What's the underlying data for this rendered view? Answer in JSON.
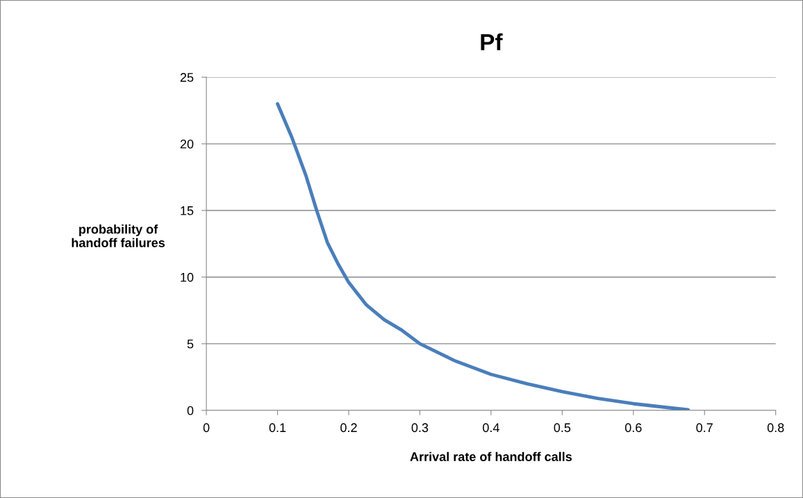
{
  "chart_data": {
    "type": "line",
    "title": "Pf",
    "xlabel": "Arrival rate of handoff calls",
    "ylabel": "probability of\nhandoff failures",
    "x": [
      0.1,
      0.12,
      0.14,
      0.155,
      0.17,
      0.185,
      0.2,
      0.225,
      0.25,
      0.275,
      0.3,
      0.35,
      0.4,
      0.45,
      0.5,
      0.55,
      0.6,
      0.65,
      0.677
    ],
    "series": [
      {
        "color": "#4a7ebb",
        "values": [
          23,
          20.5,
          17.6,
          15,
          12.6,
          11,
          9.6,
          7.9,
          6.8,
          6,
          5,
          3.7,
          2.7,
          2,
          1.4,
          0.9,
          0.5,
          0.2,
          0.05
        ]
      }
    ],
    "xlim": [
      0,
      0.8
    ],
    "xticks": [
      0,
      0.1,
      0.2,
      0.3,
      0.4,
      0.5,
      0.6,
      0.7,
      0.8
    ],
    "ylim": [
      0,
      25
    ],
    "yticks": [
      0,
      5,
      10,
      15,
      20,
      25
    ],
    "grid": "y",
    "legend": false,
    "marker": "none",
    "line_style": "solid"
  }
}
